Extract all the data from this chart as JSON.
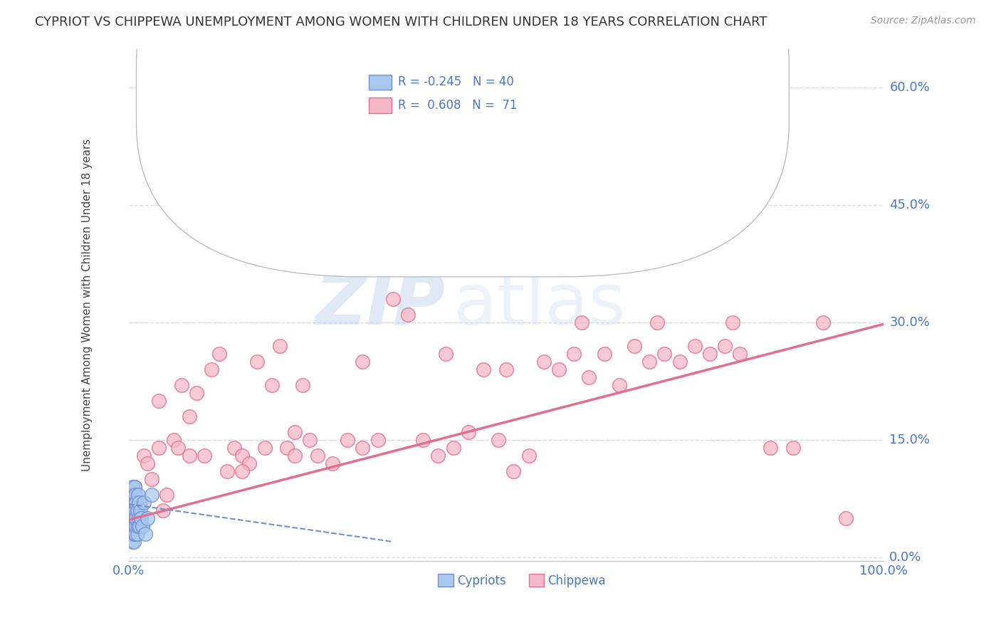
{
  "title": "CYPRIOT VS CHIPPEWA UNEMPLOYMENT AMONG WOMEN WITH CHILDREN UNDER 18 YEARS CORRELATION CHART",
  "source": "Source: ZipAtlas.com",
  "ylabel": "Unemployment Among Women with Children Under 18 years",
  "xlabel": "",
  "cypriot_R": -0.245,
  "cypriot_N": 40,
  "chippewa_R": 0.608,
  "chippewa_N": 71,
  "xlim": [
    0.0,
    1.0
  ],
  "ylim": [
    -0.005,
    0.65
  ],
  "yticks": [
    0.0,
    0.15,
    0.3,
    0.45,
    0.6
  ],
  "xticks": [
    0.0,
    0.25,
    0.5,
    0.75,
    1.0
  ],
  "ytick_labels": [
    "0.0%",
    "15.0%",
    "30.0%",
    "45.0%",
    "60.0%"
  ],
  "xtick_labels": [
    "0.0%",
    "",
    "",
    "",
    "100.0%"
  ],
  "cypriot_color": "#A8C8F0",
  "chippewa_color": "#F5B8C8",
  "cypriot_edge": "#7090CC",
  "chippewa_edge": "#E07090",
  "trend_chippewa_color": "#E07090",
  "trend_cypriot_color": "#7090CC",
  "watermark_zip": "ZIP",
  "watermark_atlas": "atlas",
  "background_color": "#FFFFFF",
  "axis_label_color": "#4878C8",
  "grid_color": "#D8D8E8",
  "legend_label_color": "#4878C8",
  "cypriot_x": [
    0.002,
    0.003,
    0.003,
    0.004,
    0.004,
    0.005,
    0.005,
    0.005,
    0.006,
    0.006,
    0.006,
    0.007,
    0.007,
    0.007,
    0.007,
    0.008,
    0.008,
    0.008,
    0.008,
    0.008,
    0.009,
    0.009,
    0.009,
    0.01,
    0.01,
    0.01,
    0.011,
    0.011,
    0.012,
    0.012,
    0.013,
    0.013,
    0.014,
    0.015,
    0.016,
    0.018,
    0.02,
    0.022,
    0.025,
    0.03
  ],
  "cypriot_y": [
    0.05,
    0.03,
    0.07,
    0.04,
    0.08,
    0.02,
    0.06,
    0.09,
    0.03,
    0.07,
    0.05,
    0.04,
    0.08,
    0.06,
    0.02,
    0.03,
    0.05,
    0.07,
    0.09,
    0.04,
    0.03,
    0.06,
    0.08,
    0.04,
    0.07,
    0.05,
    0.03,
    0.06,
    0.04,
    0.08,
    0.05,
    0.07,
    0.04,
    0.06,
    0.05,
    0.04,
    0.07,
    0.03,
    0.05,
    0.08
  ],
  "chippewa_x": [
    0.008,
    0.015,
    0.02,
    0.025,
    0.03,
    0.04,
    0.045,
    0.05,
    0.06,
    0.065,
    0.07,
    0.08,
    0.09,
    0.1,
    0.11,
    0.12,
    0.13,
    0.14,
    0.15,
    0.16,
    0.17,
    0.18,
    0.19,
    0.2,
    0.21,
    0.22,
    0.23,
    0.24,
    0.25,
    0.27,
    0.29,
    0.31,
    0.33,
    0.35,
    0.37,
    0.39,
    0.41,
    0.43,
    0.45,
    0.47,
    0.49,
    0.51,
    0.53,
    0.55,
    0.57,
    0.59,
    0.61,
    0.63,
    0.65,
    0.67,
    0.69,
    0.71,
    0.73,
    0.75,
    0.77,
    0.79,
    0.81,
    0.85,
    0.88,
    0.92,
    0.04,
    0.08,
    0.15,
    0.22,
    0.31,
    0.42,
    0.5,
    0.6,
    0.7,
    0.8,
    0.95
  ],
  "chippewa_y": [
    0.09,
    0.07,
    0.13,
    0.12,
    0.1,
    0.2,
    0.06,
    0.08,
    0.15,
    0.14,
    0.22,
    0.18,
    0.21,
    0.13,
    0.24,
    0.26,
    0.11,
    0.14,
    0.13,
    0.12,
    0.25,
    0.14,
    0.22,
    0.27,
    0.14,
    0.16,
    0.22,
    0.15,
    0.13,
    0.12,
    0.15,
    0.14,
    0.15,
    0.33,
    0.31,
    0.15,
    0.13,
    0.14,
    0.16,
    0.24,
    0.15,
    0.11,
    0.13,
    0.25,
    0.24,
    0.26,
    0.23,
    0.26,
    0.22,
    0.27,
    0.25,
    0.26,
    0.25,
    0.27,
    0.26,
    0.27,
    0.26,
    0.14,
    0.14,
    0.3,
    0.14,
    0.13,
    0.11,
    0.13,
    0.25,
    0.26,
    0.24,
    0.3,
    0.3,
    0.3,
    0.05
  ],
  "trend_chip_x0": 0.0,
  "trend_chip_y0": 0.048,
  "trend_chip_x1": 1.0,
  "trend_chip_y1": 0.298,
  "trend_cyp_x0": 0.0,
  "trend_cyp_y0": 0.068,
  "trend_cyp_x1": 0.35,
  "trend_cyp_y1": 0.02
}
